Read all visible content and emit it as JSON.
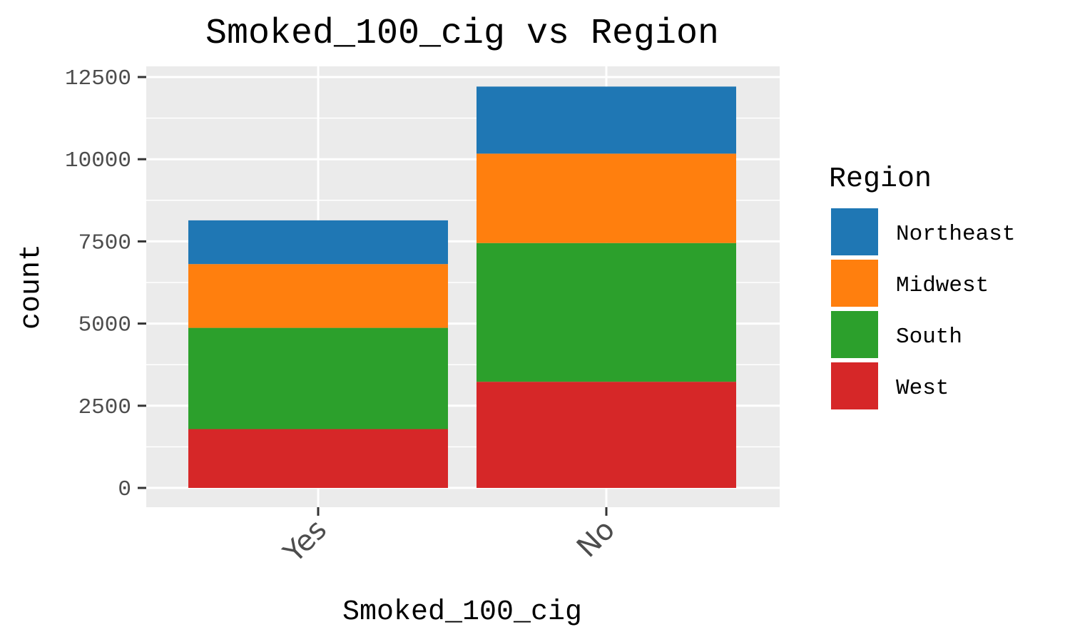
{
  "chart_data": {
    "type": "bar",
    "stacked": true,
    "title": "Smoked_100_cig vs Region",
    "xlabel": "Smoked_100_cig",
    "ylabel": "count",
    "categories": [
      "Yes",
      "No"
    ],
    "ylim": [
      0,
      12500
    ],
    "yticks": [
      0,
      2500,
      5000,
      7500,
      10000,
      12500
    ],
    "grid": true,
    "legend": {
      "title": "Region",
      "placement": "right"
    },
    "series": [
      {
        "name": "West",
        "color": "#d62728",
        "values": [
          1790,
          3230
        ]
      },
      {
        "name": "South",
        "color": "#2ca02c",
        "values": [
          3080,
          4220
        ]
      },
      {
        "name": "Midwest",
        "color": "#ff7f0e",
        "values": [
          1940,
          2720
        ]
      },
      {
        "name": "Northeast",
        "color": "#1f77b4",
        "values": [
          1330,
          2040
        ]
      }
    ],
    "legend_order": [
      "Northeast",
      "Midwest",
      "South",
      "West"
    ]
  }
}
